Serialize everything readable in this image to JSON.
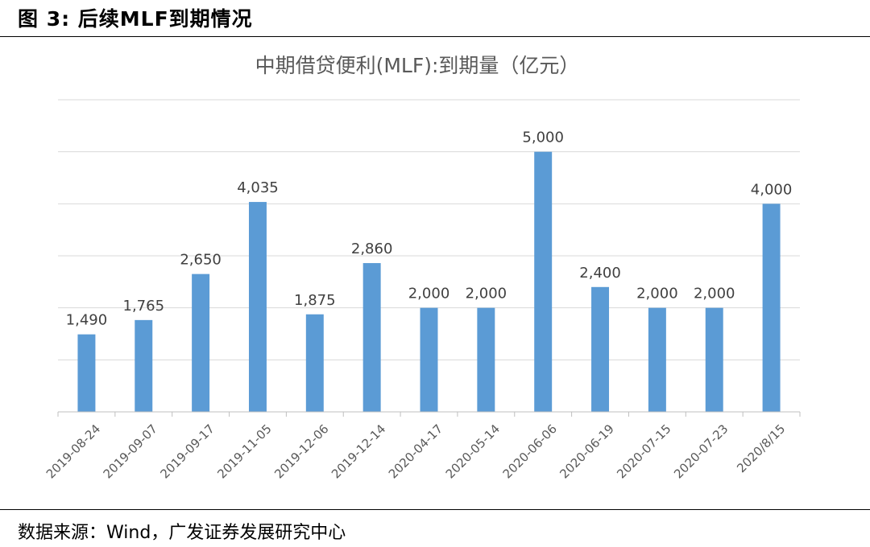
{
  "figure_title": "图 3: 后续MLF到期情况",
  "source": "数据来源：Wind，广发证券发展研究中心",
  "colors": {
    "bar": "#5B9BD5",
    "grid": "#D9D9D9",
    "axis": "#BFBFBF"
  },
  "chart_data": {
    "type": "bar",
    "title": "中期借贷便利(MLF):到期量（亿元）",
    "xlabel": "",
    "ylabel": "",
    "ylim": [
      0,
      6000
    ],
    "grid": true,
    "legend": "none",
    "categories": [
      "2019-08-24",
      "2019-09-07",
      "2019-09-17",
      "2019-11-05",
      "2019-12-06",
      "2019-12-14",
      "2020-04-17",
      "2020-05-14",
      "2020-06-06",
      "2020-06-19",
      "2020-07-15",
      "2020-07-23",
      "2020/8/15"
    ],
    "values": [
      1490,
      1765,
      2650,
      4035,
      1875,
      2860,
      2000,
      2000,
      5000,
      2400,
      2000,
      2000,
      4000
    ],
    "value_labels": [
      "1,490",
      "1,765",
      "2,650",
      "4,035",
      "1,875",
      "2,860",
      "2,000",
      "2,000",
      "5,000",
      "2,400",
      "2,000",
      "2,000",
      "4,000"
    ]
  }
}
